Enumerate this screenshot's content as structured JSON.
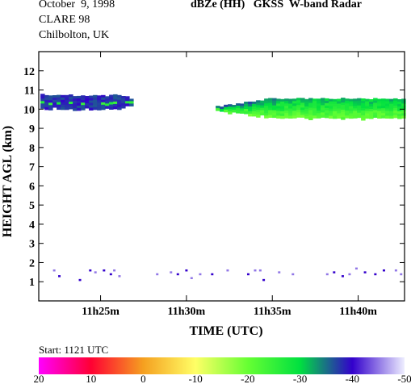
{
  "header": {
    "date": "October  9, 1998",
    "campaign": "CLARE 98",
    "site": "Chilbolton, UK",
    "title": "dBZe (HH)   GKSS  W-band Radar"
  },
  "start_label": "Start: 1121 UTC",
  "chart_data": {
    "type": "heatmap",
    "title": "dBZe (HH)   GKSS  W-band Radar",
    "xlabel": "TIME (UTC)",
    "ylabel": "HEIGHT AGL (km)",
    "xlim_minutes": [
      21.4,
      42.7
    ],
    "ylim": [
      0,
      13
    ],
    "x_ticks": [
      {
        "minute": 25,
        "label": "11h25m"
      },
      {
        "minute": 30,
        "label": "11h30m"
      },
      {
        "minute": 35,
        "label": "11h35m"
      },
      {
        "minute": 40,
        "label": "11h40m"
      }
    ],
    "y_ticks": [
      1,
      2,
      3,
      4,
      5,
      6,
      7,
      8,
      9,
      10,
      11,
      12
    ],
    "colorbar": {
      "ticks": [
        20,
        10,
        0,
        -10,
        -20,
        -30,
        -40,
        -50
      ],
      "stops": [
        "#ff00ff",
        "#ff0033",
        "#f5a020",
        "#ffff66",
        "#66ff33",
        "#00e040",
        "#3300cc",
        "#eeeeff"
      ]
    },
    "cloud_layers": [
      {
        "start_min": 21.5,
        "end_min": 26.8,
        "base_km": 10.0,
        "top_km": 10.8,
        "dominant_dbz": -40
      },
      {
        "start_min": 31.7,
        "end_min": 42.7,
        "base_km": 9.6,
        "top_km": 10.6,
        "dominant_dbz": -25
      }
    ],
    "clutter_points": [
      {
        "min": 22.3,
        "km": 1.6,
        "dbz": -45
      },
      {
        "min": 22.6,
        "km": 1.3,
        "dbz": -40
      },
      {
        "min": 23.8,
        "km": 1.1,
        "dbz": -40
      },
      {
        "min": 24.4,
        "km": 1.6,
        "dbz": -40
      },
      {
        "min": 24.7,
        "km": 1.5,
        "dbz": -45
      },
      {
        "min": 25.2,
        "km": 1.6,
        "dbz": -40
      },
      {
        "min": 25.6,
        "km": 1.4,
        "dbz": -40
      },
      {
        "min": 25.8,
        "km": 1.6,
        "dbz": -45
      },
      {
        "min": 26.1,
        "km": 1.3,
        "dbz": -45
      },
      {
        "min": 28.3,
        "km": 1.4,
        "dbz": -45
      },
      {
        "min": 29.1,
        "km": 1.5,
        "dbz": -45
      },
      {
        "min": 29.5,
        "km": 1.4,
        "dbz": -40
      },
      {
        "min": 30.0,
        "km": 1.6,
        "dbz": -40
      },
      {
        "min": 30.3,
        "km": 1.2,
        "dbz": -45
      },
      {
        "min": 30.8,
        "km": 1.4,
        "dbz": -45
      },
      {
        "min": 31.5,
        "km": 1.4,
        "dbz": -40
      },
      {
        "min": 32.4,
        "km": 1.6,
        "dbz": -45
      },
      {
        "min": 33.6,
        "km": 1.4,
        "dbz": -40
      },
      {
        "min": 34.0,
        "km": 1.6,
        "dbz": -45
      },
      {
        "min": 34.3,
        "km": 1.6,
        "dbz": -45
      },
      {
        "min": 34.5,
        "km": 1.1,
        "dbz": -40
      },
      {
        "min": 35.4,
        "km": 1.5,
        "dbz": -45
      },
      {
        "min": 36.2,
        "km": 1.4,
        "dbz": -45
      },
      {
        "min": 38.2,
        "km": 1.4,
        "dbz": -45
      },
      {
        "min": 38.6,
        "km": 1.5,
        "dbz": -40
      },
      {
        "min": 39.1,
        "km": 1.3,
        "dbz": -40
      },
      {
        "min": 39.5,
        "km": 1.4,
        "dbz": -45
      },
      {
        "min": 39.9,
        "km": 1.7,
        "dbz": -45
      },
      {
        "min": 40.4,
        "km": 1.5,
        "dbz": -40
      },
      {
        "min": 41.0,
        "km": 1.4,
        "dbz": -40
      },
      {
        "min": 41.5,
        "km": 1.6,
        "dbz": -40
      },
      {
        "min": 42.2,
        "km": 1.6,
        "dbz": -45
      },
      {
        "min": 42.5,
        "km": 1.4,
        "dbz": -45
      }
    ]
  }
}
